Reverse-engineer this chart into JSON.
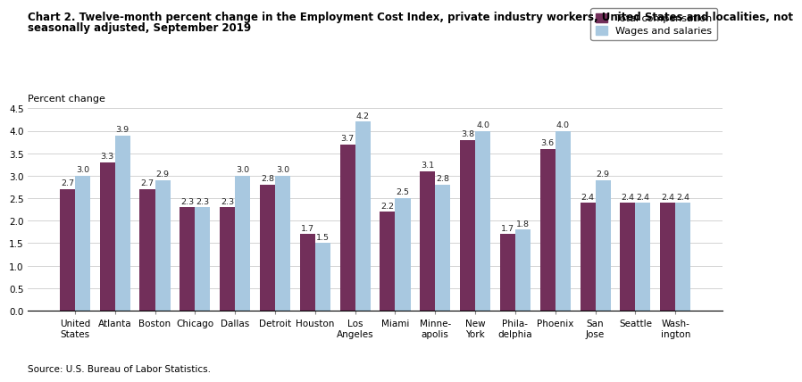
{
  "title_line1": "Chart 2. Twelve-month percent change in the Employment Cost Index, private industry workers, United States and localities, not",
  "title_line2": "seasonally adjusted, September 2019",
  "ylabel": "Percent change",
  "source": "Source: U.S. Bureau of Labor Statistics.",
  "ylim": [
    0,
    4.5
  ],
  "yticks": [
    0.0,
    0.5,
    1.0,
    1.5,
    2.0,
    2.5,
    3.0,
    3.5,
    4.0,
    4.5
  ],
  "categories": [
    "United\nStates",
    "Atlanta",
    "Boston",
    "Chicago",
    "Dallas",
    "Detroit",
    "Houston",
    "Los\nAngeles",
    "Miami",
    "Minne-\napolis",
    "New\nYork",
    "Phila-\ndelphia",
    "Phoenix",
    "San\nJose",
    "Seattle",
    "Wash-\nington"
  ],
  "total_compensation": [
    2.7,
    3.3,
    2.7,
    2.3,
    2.3,
    2.8,
    1.7,
    3.7,
    2.2,
    3.1,
    3.8,
    1.7,
    3.6,
    2.4,
    2.4,
    2.4
  ],
  "wages_salaries": [
    3.0,
    3.9,
    2.9,
    2.3,
    3.0,
    3.0,
    1.5,
    4.2,
    2.5,
    2.8,
    4.0,
    1.8,
    4.0,
    2.9,
    2.4,
    2.4
  ],
  "color_total": "#722F5A",
  "color_wages": "#A8C8E0",
  "legend_total": "Total compensation",
  "legend_wages": "Wages and salaries",
  "bar_width": 0.38,
  "title_fontsize": 8.5,
  "axis_fontsize": 8,
  "tick_fontsize": 7.5,
  "label_fontsize": 6.8
}
